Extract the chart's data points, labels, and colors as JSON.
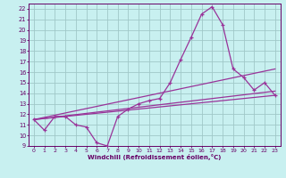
{
  "bg_color": "#c8f0f0",
  "grid_color": "#a0c8c8",
  "line_color": "#993399",
  "xlabel": "Windchill (Refroidissement éolien,°C)",
  "xlabel_color": "#660066",
  "tick_color": "#660066",
  "xlim": [
    -0.5,
    23.5
  ],
  "ylim": [
    9.0,
    22.5
  ],
  "yticks": [
    9,
    10,
    11,
    12,
    13,
    14,
    15,
    16,
    17,
    18,
    19,
    20,
    21,
    22
  ],
  "xticks": [
    0,
    1,
    2,
    3,
    4,
    5,
    6,
    7,
    8,
    9,
    10,
    11,
    12,
    13,
    14,
    15,
    16,
    17,
    18,
    19,
    20,
    21,
    22,
    23
  ],
  "main_x": [
    0,
    1,
    2,
    3,
    4,
    5,
    6,
    7,
    8,
    9,
    10,
    11,
    12,
    13,
    14,
    15,
    16,
    17,
    18,
    19,
    20,
    21,
    22,
    23
  ],
  "main_y": [
    11.5,
    10.5,
    11.8,
    11.8,
    11.0,
    10.8,
    9.3,
    9.0,
    11.8,
    12.5,
    13.0,
    13.3,
    13.5,
    15.0,
    17.2,
    19.3,
    21.5,
    22.2,
    20.5,
    16.3,
    15.5,
    14.3,
    15.0,
    13.8
  ],
  "trend1_x": [
    0,
    23
  ],
  "trend1_y": [
    11.5,
    16.3
  ],
  "trend2_x": [
    0,
    23
  ],
  "trend2_y": [
    11.5,
    14.2
  ],
  "trend3_x": [
    0,
    23
  ],
  "trend3_y": [
    11.5,
    13.8
  ]
}
